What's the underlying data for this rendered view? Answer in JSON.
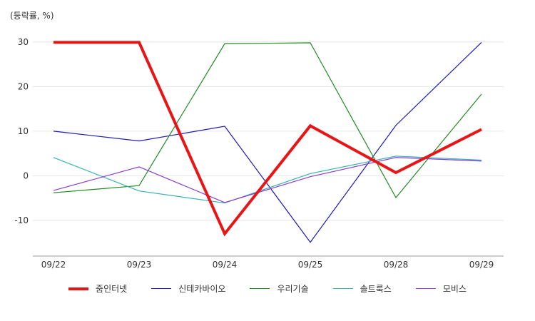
{
  "chart_data": {
    "type": "line",
    "unit_label": "(등락률, %)",
    "categories": [
      "09/22",
      "09/23",
      "09/24",
      "09/25",
      "09/28",
      "09/29"
    ],
    "ylim": [
      -18,
      33
    ],
    "yticks": [
      30,
      20,
      10,
      0,
      -10
    ],
    "grid": true,
    "legend": "bottom",
    "series": [
      {
        "name": "줌인터넷",
        "color": "#e81416",
        "emphasis": true,
        "values": [
          29.9,
          29.9,
          -13.0,
          11.2,
          0.7,
          10.4
        ]
      },
      {
        "name": "신테카바이오",
        "color": "#1a1ab8",
        "values": [
          10.0,
          7.8,
          11.1,
          -14.9,
          11.3,
          29.9
        ]
      },
      {
        "name": "우리기술",
        "color": "#228b22",
        "values": [
          -3.8,
          -2.2,
          29.6,
          29.8,
          -4.9,
          18.3
        ]
      },
      {
        "name": "솔트룩스",
        "color": "#36b3b3",
        "values": [
          4.1,
          -3.4,
          -6.1,
          0.5,
          4.4,
          3.5
        ]
      },
      {
        "name": "모비스",
        "color": "#8a3fd0",
        "values": [
          -3.3,
          2.0,
          -6.0,
          -0.2,
          4.1,
          3.3
        ]
      }
    ]
  }
}
